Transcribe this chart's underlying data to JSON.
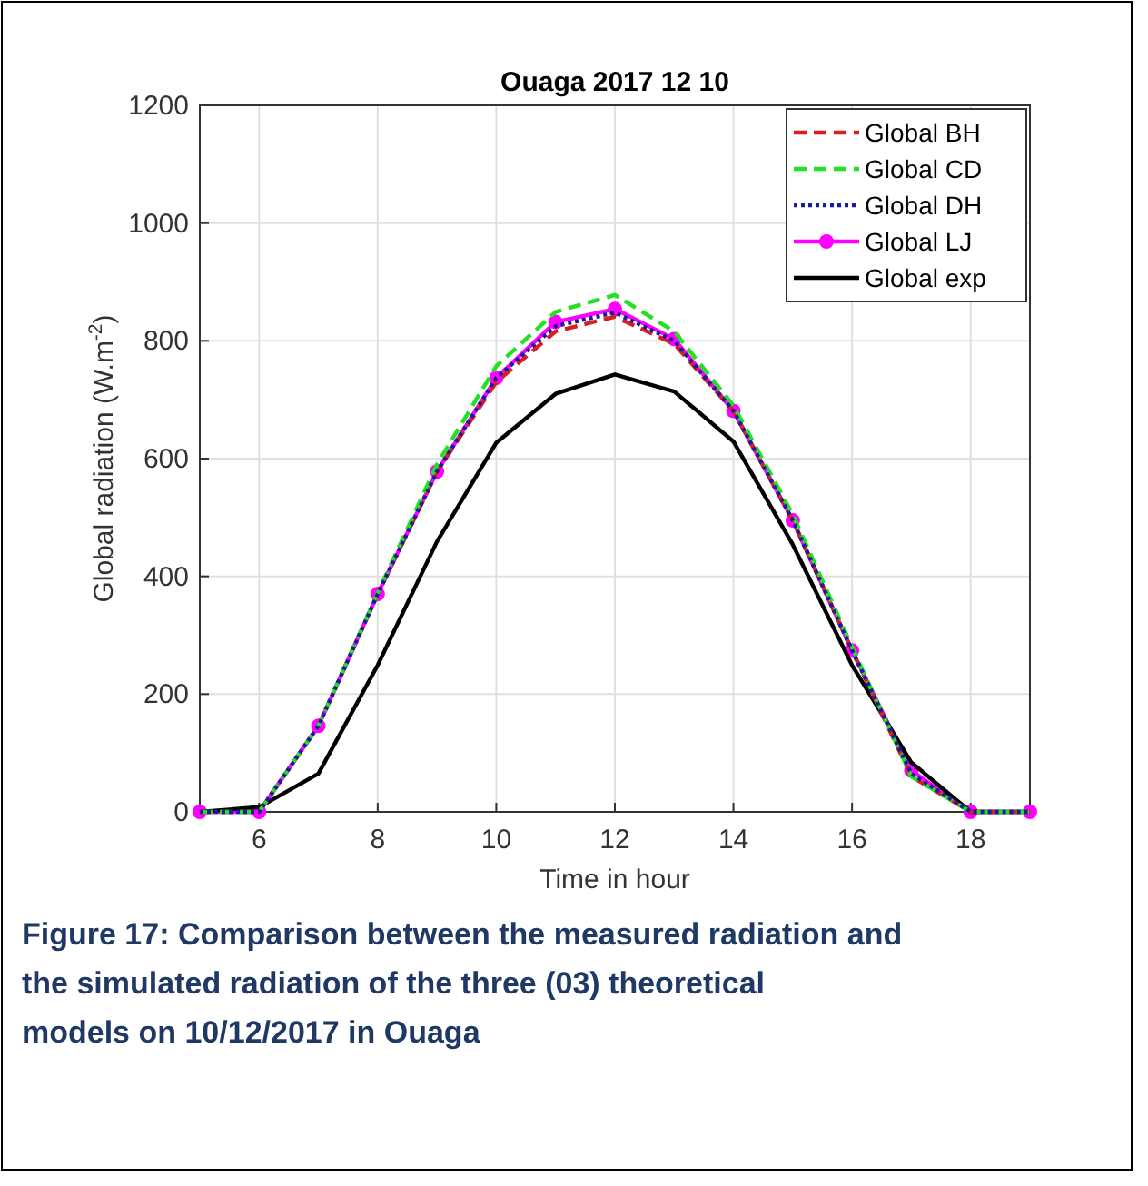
{
  "chart_data": {
    "type": "line",
    "title": "Ouaga 2017 12 10",
    "xlabel": "Time in hour",
    "ylabel": "Global radiation (W.m$^{-2}$)",
    "x": [
      5,
      6,
      7,
      8,
      9,
      10,
      11,
      12,
      13,
      14,
      15,
      16,
      17,
      18,
      19
    ],
    "xlim": [
      5,
      19
    ],
    "xticks": [
      6,
      8,
      10,
      12,
      14,
      16,
      18
    ],
    "ylim": [
      0,
      1200
    ],
    "yticks": [
      0,
      200,
      400,
      600,
      800,
      1000,
      1200
    ],
    "grid": true,
    "legend": "top right",
    "series": [
      {
        "name": "Global BH",
        "color": "#d62020",
        "line_style": "dashed",
        "marker": "none",
        "values": [
          0,
          0,
          146,
          370,
          578,
          730,
          816,
          841,
          795,
          681,
          495,
          274,
          60,
          0,
          0
        ]
      },
      {
        "name": "Global CD",
        "color": "#22e022",
        "line_style": "dashed",
        "marker": "none",
        "values": [
          0,
          0,
          146,
          372,
          590,
          757,
          849,
          878,
          816,
          690,
          505,
          280,
          60,
          0,
          0
        ]
      },
      {
        "name": "Global DH",
        "color": "#1a1aa0",
        "line_style": "dotted",
        "marker": "none",
        "values": [
          0,
          0,
          146,
          370,
          578,
          737,
          825,
          848,
          800,
          681,
          495,
          274,
          65,
          0,
          0
        ]
      },
      {
        "name": "Global LJ",
        "color": "#ff00ff",
        "line_style": "solid",
        "marker": "circle",
        "values": [
          0,
          0,
          146,
          370,
          578,
          737,
          832,
          854,
          803,
          681,
          495,
          274,
          70,
          0,
          0
        ]
      },
      {
        "name": "Global exp",
        "color": "#000000",
        "line_style": "solid",
        "marker": "none",
        "values": [
          0,
          8,
          65,
          249,
          459,
          627,
          710,
          743,
          714,
          629,
          454,
          249,
          84,
          0,
          0
        ]
      }
    ],
    "annotations": [
      "Figure 17: Comparison between the measured radiation and the simulated radiation of the three (03) theoretical models on 10/12/2017 in Ouaga"
    ]
  }
}
